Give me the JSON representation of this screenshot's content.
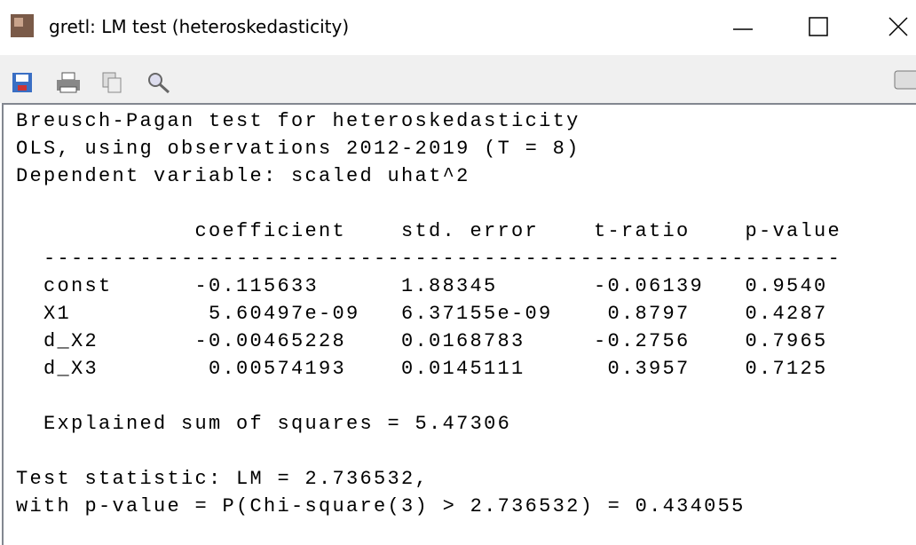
{
  "window": {
    "title": "gretl: LM test (heteroskedasticity)"
  },
  "output": {
    "heading": [
      "Breusch-Pagan test for heteroskedasticity",
      "OLS, using observations 2012-2019 (T = 8)",
      "Dependent variable: scaled uhat^2"
    ],
    "table": {
      "columns": [
        "coefficient",
        "std. error",
        "t-ratio",
        "p-value"
      ],
      "rule": "----------------------------------------------------------",
      "rows": [
        [
          "const",
          "-0.115633",
          "1.88345",
          "-0.06139",
          "0.9540"
        ],
        [
          "X1",
          "5.60497e-09",
          "6.37155e-09",
          "0.8797",
          "0.4287"
        ],
        [
          "d_X2",
          "-0.00465228",
          "0.0168783",
          "-0.2756",
          "0.7965"
        ],
        [
          "d_X3",
          "0.00574193",
          "0.0145111",
          "0.3957",
          "0.7125"
        ]
      ]
    },
    "ess": "Explained sum of squares = 5.47306",
    "test": [
      "Test statistic: LM = 2.736532,",
      "with p-value = P(Chi-square(3) > 2.736532) = 0.434055"
    ]
  }
}
